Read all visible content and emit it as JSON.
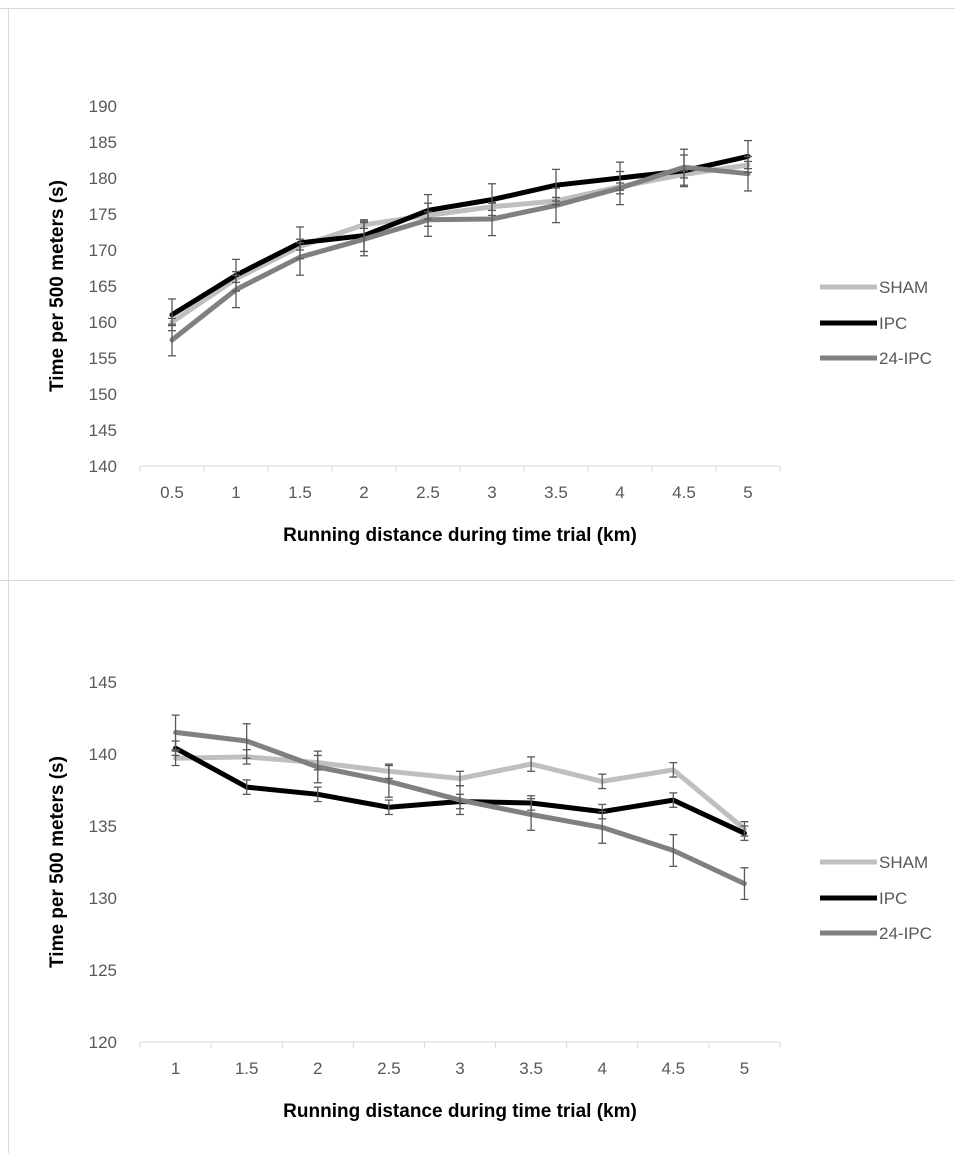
{
  "chart_data": [
    {
      "type": "line",
      "title": "",
      "xlabel": "Running distance during time trial (km)",
      "ylabel": "Time per 500 meters (s)",
      "categories": [
        "0.5",
        "1",
        "1.5",
        "2",
        "2.5",
        "3",
        "3.5",
        "4",
        "4.5",
        "5"
      ],
      "ylim": [
        140,
        190
      ],
      "yticks": [
        "140",
        "145",
        "150",
        "155",
        "160",
        "165",
        "170",
        "175",
        "180",
        "185",
        "190"
      ],
      "grid": false,
      "legend": "right",
      "series": [
        {
          "name": "SHAM",
          "color": "#bfbfbf",
          "values": [
            160.0,
            166.0,
            170.5,
            173.5,
            174.8,
            176.0,
            176.8,
            178.8,
            180.5,
            181.8
          ],
          "errors": [
            0.5,
            0.5,
            0.5,
            0.5,
            0.5,
            0.5,
            0.5,
            0.5,
            0.5,
            0.5
          ]
        },
        {
          "name": "IPC",
          "color": "#000000",
          "values": [
            161.0,
            166.5,
            171.0,
            172.0,
            175.5,
            177.0,
            179.0,
            180.0,
            181.0,
            183.0
          ],
          "errors": [
            2.2,
            2.2,
            2.2,
            2.2,
            2.2,
            2.2,
            2.2,
            2.2,
            2.2,
            2.2
          ]
        },
        {
          "name": "24-IPC",
          "color": "#808080",
          "values": [
            157.5,
            164.5,
            169.0,
            171.5,
            174.2,
            174.3,
            176.2,
            178.6,
            181.5,
            180.6
          ],
          "errors": [
            2.2,
            2.5,
            2.5,
            2.3,
            2.3,
            2.3,
            2.4,
            2.3,
            2.5,
            2.4
          ]
        }
      ]
    },
    {
      "type": "line",
      "title": "",
      "xlabel": "Running distance during time trial (km)",
      "ylabel": "Time per 500 meters (s)",
      "categories": [
        "1",
        "1.5",
        "2",
        "2.5",
        "3",
        "3.5",
        "4",
        "4.5",
        "5"
      ],
      "ylim": [
        120,
        145
      ],
      "yticks": [
        "120",
        "125",
        "130",
        "135",
        "140",
        "145"
      ],
      "grid": false,
      "legend": "right",
      "series": [
        {
          "name": "SHAM",
          "color": "#bfbfbf",
          "values": [
            139.7,
            139.8,
            139.4,
            138.8,
            138.3,
            139.3,
            138.1,
            138.9,
            134.8
          ],
          "errors": [
            0.5,
            0.5,
            0.5,
            0.5,
            0.5,
            0.5,
            0.5,
            0.5,
            0.5
          ]
        },
        {
          "name": "IPC",
          "color": "#000000",
          "values": [
            140.4,
            137.7,
            137.2,
            136.3,
            136.7,
            136.6,
            136.0,
            136.8,
            134.5
          ],
          "errors": [
            0.5,
            0.5,
            0.5,
            0.5,
            0.5,
            0.5,
            0.5,
            0.5,
            0.5
          ]
        },
        {
          "name": "24-IPC",
          "color": "#808080",
          "values": [
            141.5,
            140.9,
            139.1,
            138.1,
            136.8,
            135.8,
            134.9,
            133.3,
            131.0
          ],
          "errors": [
            1.2,
            1.2,
            1.1,
            1.1,
            1.0,
            1.1,
            1.1,
            1.1,
            1.1
          ]
        }
      ]
    }
  ]
}
